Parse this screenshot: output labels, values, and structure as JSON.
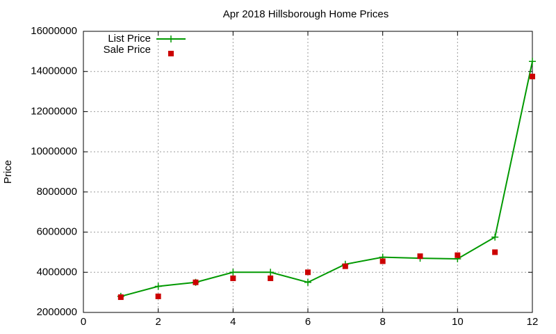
{
  "chart_data": {
    "type": "line",
    "title": "Apr 2018 Hillsborough Home Prices",
    "y_label": "Price",
    "x": [
      1,
      2,
      3,
      4,
      5,
      6,
      7,
      8,
      9,
      10,
      11,
      12
    ],
    "series": [
      {
        "name": "List Price",
        "color": "#009900",
        "mode": "linespoints",
        "values": [
          2800000,
          3300000,
          3500000,
          4000000,
          4000000,
          3500000,
          4400000,
          4750000,
          4700000,
          4670000,
          5750000,
          14500000
        ]
      },
      {
        "name": "Sale Price",
        "color": "#cc0000",
        "mode": "points",
        "values": [
          2760000,
          2800000,
          3500000,
          3700000,
          3700000,
          4000000,
          4300000,
          4550000,
          4800000,
          4850000,
          5000000,
          13750000
        ]
      }
    ],
    "xlim": [
      0,
      12
    ],
    "xticks": [
      0,
      2,
      4,
      6,
      8,
      10,
      12
    ],
    "ylim": [
      2000000,
      16000000
    ],
    "yticks": [
      2000000,
      4000000,
      6000000,
      8000000,
      10000000,
      12000000,
      14000000,
      16000000
    ],
    "grid": true,
    "legend": "top-left"
  }
}
